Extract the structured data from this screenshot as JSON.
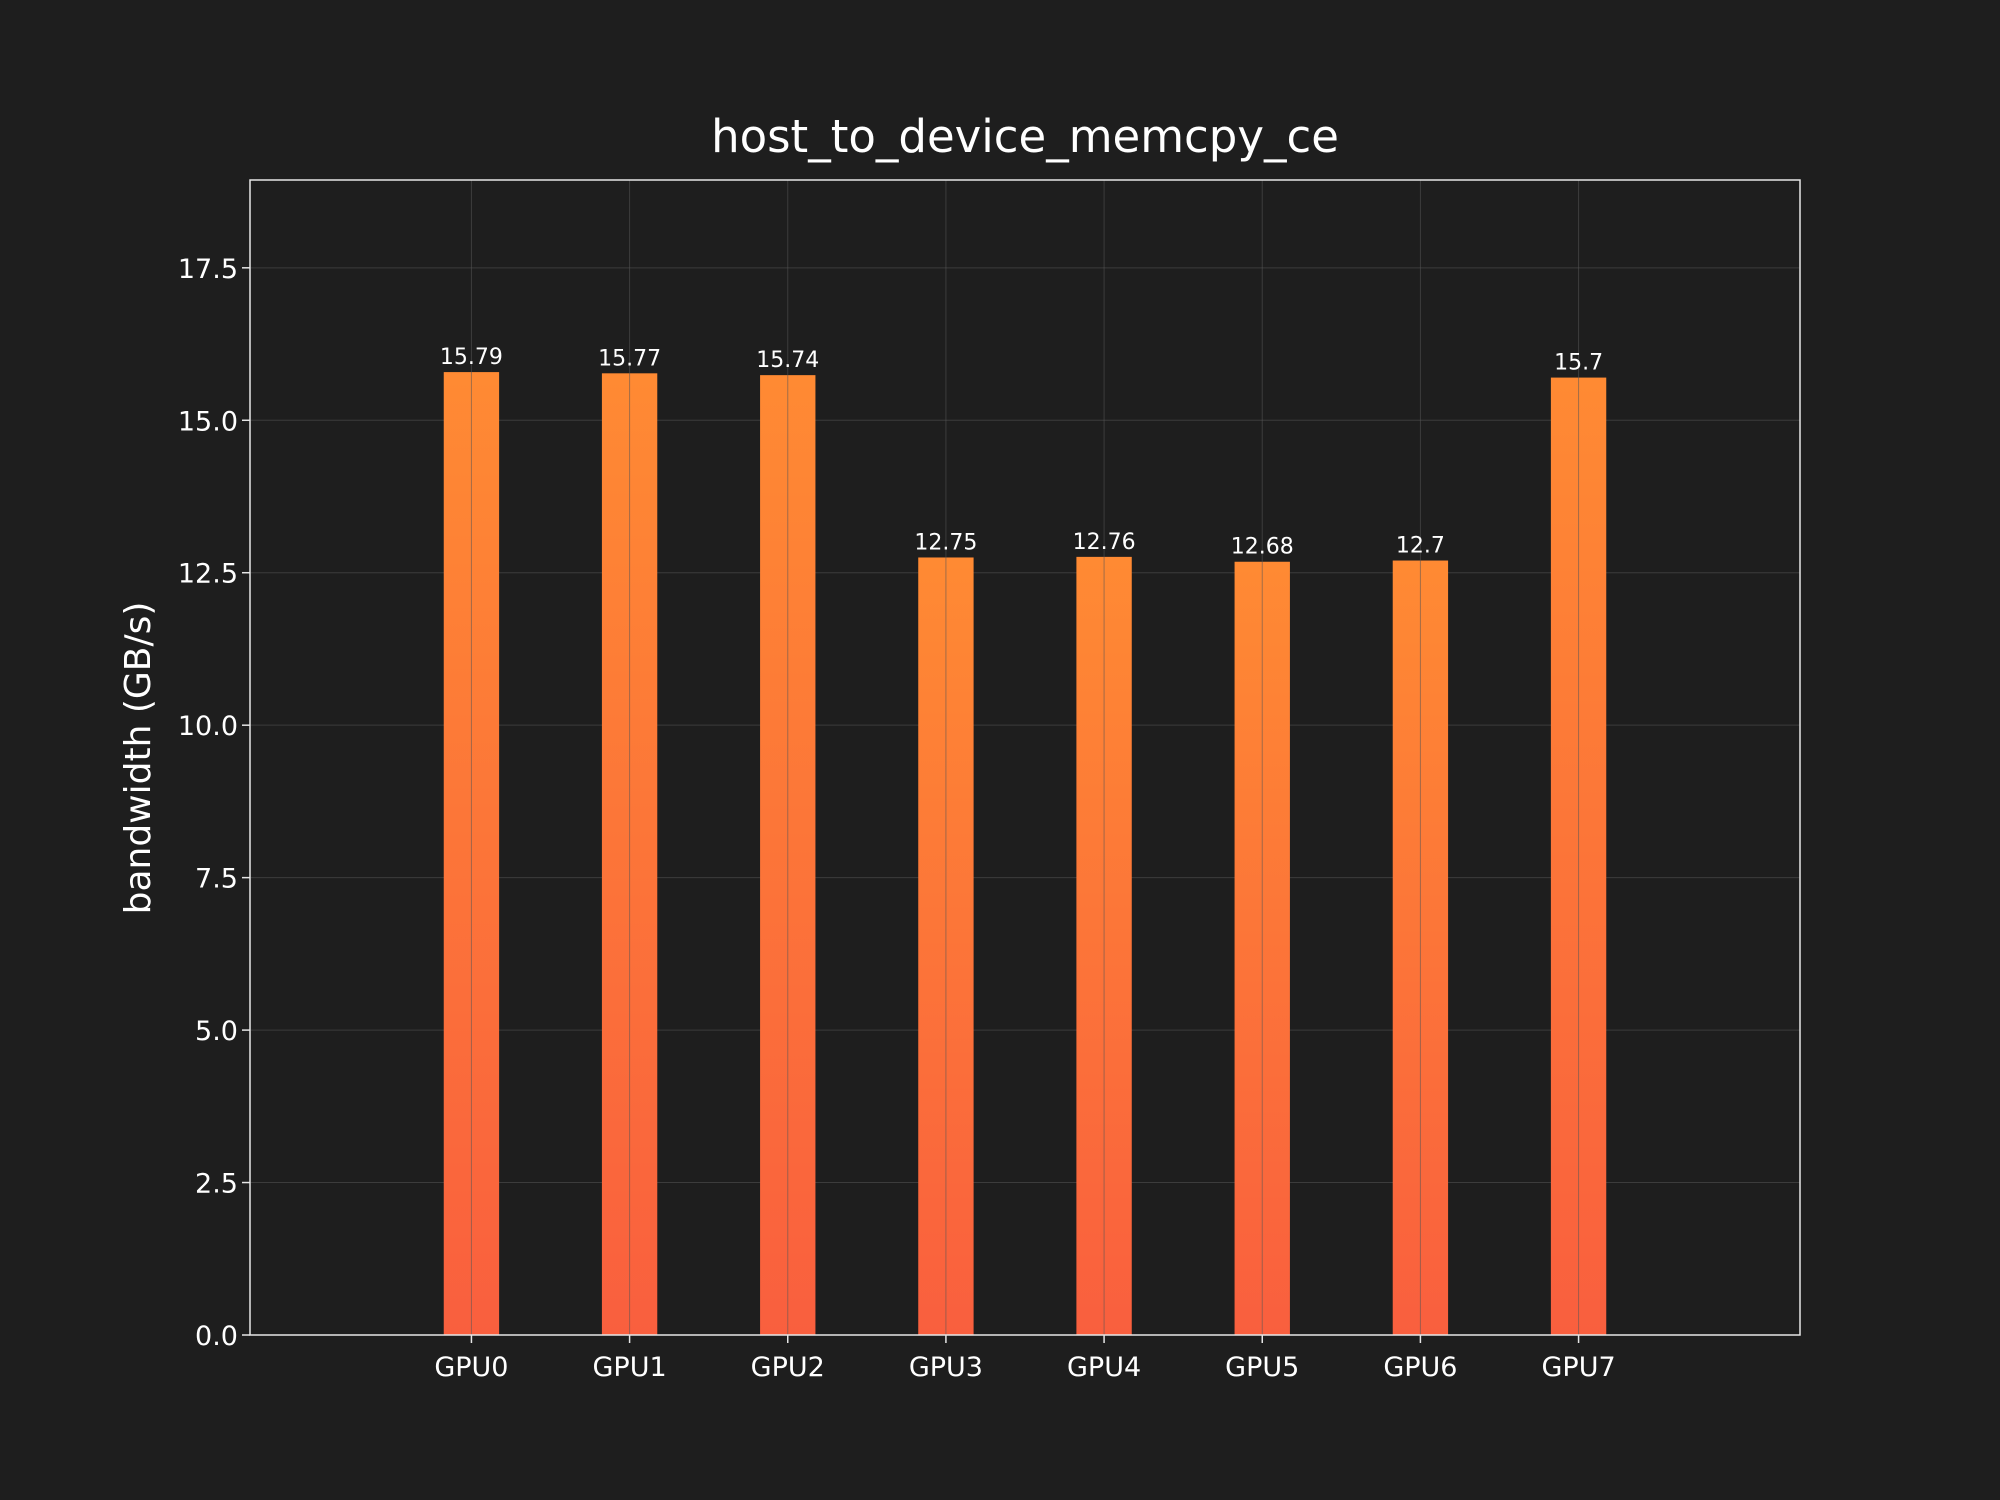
{
  "chart_data": {
    "type": "bar",
    "title": "host_to_device_memcpy_ce",
    "xlabel": "",
    "ylabel": "bandwidth (GB/s)",
    "categories": [
      "GPU0",
      "GPU1",
      "GPU2",
      "GPU3",
      "GPU4",
      "GPU5",
      "GPU6",
      "GPU7"
    ],
    "values": [
      15.79,
      15.77,
      15.74,
      12.75,
      12.76,
      12.68,
      12.7,
      15.7
    ],
    "data_labels": [
      "15.79",
      "15.77",
      "15.74",
      "12.75",
      "12.76",
      "12.68",
      "12.7",
      "15.7"
    ],
    "ylim": [
      0,
      18.94
    ],
    "yticks": [
      0.0,
      2.5,
      5.0,
      7.5,
      10.0,
      12.5,
      15.0,
      17.5
    ],
    "ytick_labels": [
      "0.0",
      "2.5",
      "5.0",
      "7.5",
      "10.0",
      "12.5",
      "15.0",
      "17.5"
    ],
    "grid": true,
    "legend": "none"
  },
  "colors": {
    "background": "#1e1e1e",
    "bar_top": "#ff8a33",
    "bar_bottom": "#f95f3e",
    "grid": "#3c3c3c",
    "axis": "#e6e6e6",
    "text": "#ffffff"
  }
}
